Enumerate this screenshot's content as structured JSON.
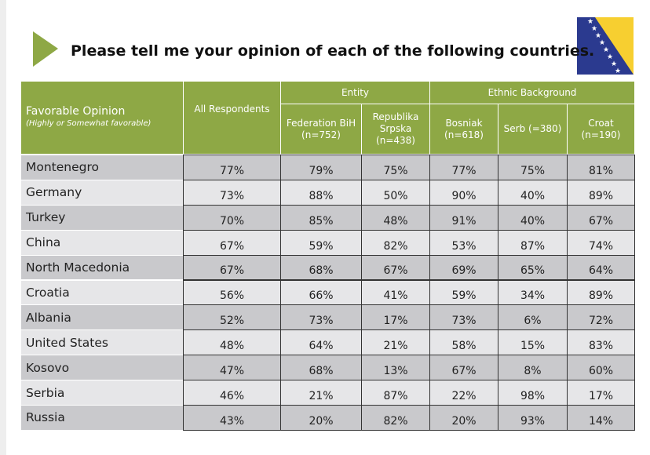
{
  "header": {
    "title": "Please tell me your opinion of each of the following countries."
  },
  "table": {
    "row_header": "Favorable Opinion",
    "row_header_note": "(Highly or Somewhat favorable)",
    "groups": [
      {
        "label": "Entity"
      },
      {
        "label": "Ethnic Background"
      }
    ],
    "columns": [
      "All Respondents",
      "Federation BiH (n=752)",
      "Republika Srpska (n=438)",
      "Bosniak (n=618)",
      "Serb (=380)",
      "Croat (n=190)"
    ],
    "rows": [
      [
        "Montenegro",
        "77%",
        "79%",
        "75%",
        "77%",
        "75%",
        "81%"
      ],
      [
        "Germany",
        "73%",
        "88%",
        "50%",
        "90%",
        "40%",
        "89%"
      ],
      [
        "Turkey",
        "70%",
        "85%",
        "48%",
        "91%",
        "40%",
        "67%"
      ],
      [
        "China",
        "67%",
        "59%",
        "82%",
        "53%",
        "87%",
        "74%"
      ],
      [
        "North Macedonia",
        "67%",
        "68%",
        "67%",
        "69%",
        "65%",
        "64%"
      ],
      [
        "Croatia",
        "56%",
        "66%",
        "41%",
        "59%",
        "34%",
        "89%"
      ],
      [
        "Albania",
        "52%",
        "73%",
        "17%",
        "73%",
        "6%",
        "72%"
      ],
      [
        "United States",
        "48%",
        "64%",
        "21%",
        "58%",
        "15%",
        "83%"
      ],
      [
        "Kosovo",
        "47%",
        "68%",
        "13%",
        "67%",
        "8%",
        "60%"
      ],
      [
        "Serbia",
        "46%",
        "21%",
        "87%",
        "22%",
        "98%",
        "17%"
      ],
      [
        "Russia",
        "43%",
        "20%",
        "82%",
        "20%",
        "93%",
        "14%"
      ]
    ]
  }
}
